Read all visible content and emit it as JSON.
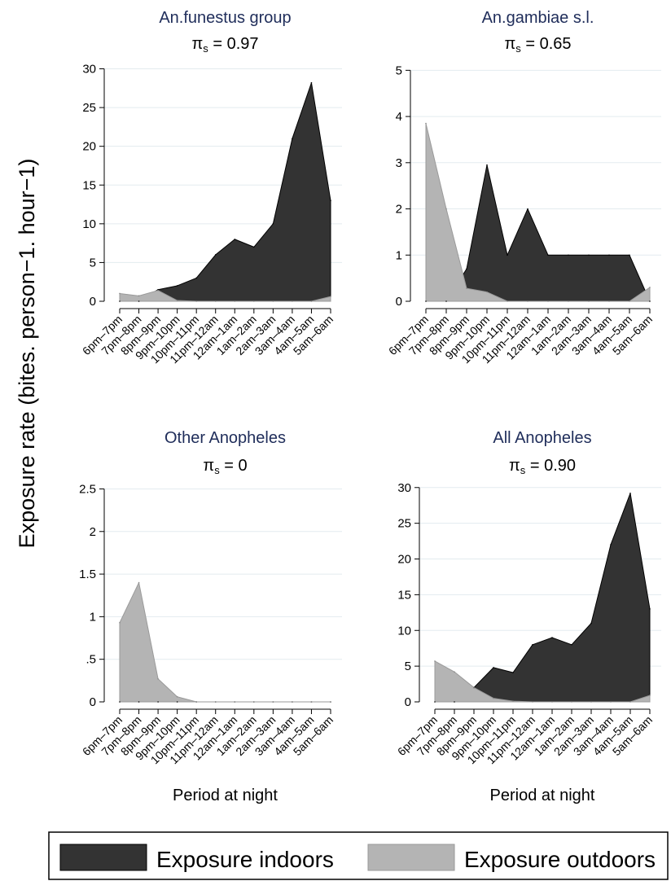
{
  "ylabel": "Exposure rate (bites. person−1. hour−1)",
  "legend": {
    "indoor_label": "Exposure indoors",
    "outdoor_label": "Exposure outdoors",
    "indoor_color": "#333333",
    "outdoor_color": "#b4b4b4"
  },
  "chart_data": [
    {
      "type": "area",
      "title": "An.funestus group",
      "pi_symbol": "π",
      "pi_sub": "s",
      "pi_value": "= 0.97",
      "xlabel": "",
      "categories": [
        "6pm–7pm",
        "7pm–8pm",
        "8pm–9pm",
        "9pm–10pm",
        "10pm–11pm",
        "11pm–12am",
        "12am–1am",
        "1am–2am",
        "2am–3am",
        "3am–4am",
        "4am–5am",
        "5am–6am"
      ],
      "yticks": [
        0,
        5,
        10,
        15,
        20,
        25,
        30
      ],
      "ytick_labels": [
        "0",
        "5",
        "10",
        "15",
        "20",
        "25",
        "30"
      ],
      "ylim": [
        0,
        31
      ],
      "series": [
        {
          "name": "Exposure indoors",
          "values": [
            0,
            0,
            1.5,
            2,
            3,
            6,
            8,
            7,
            10,
            21,
            28.2,
            13
          ]
        },
        {
          "name": "Exposure outdoors",
          "values": [
            1.0,
            0.7,
            1.4,
            0.1,
            0,
            0,
            0,
            0,
            0,
            0,
            0,
            0.6
          ]
        }
      ]
    },
    {
      "type": "area",
      "title": "An.gambiae s.l.",
      "pi_symbol": "π",
      "pi_sub": "s",
      "pi_value": "= 0.65",
      "xlabel": "",
      "categories": [
        "6pm–7pm",
        "7pm–8pm",
        "8pm–9pm",
        "9pm–10pm",
        "10pm–11pm",
        "11pm–12am",
        "12am–1am",
        "1am–2am",
        "2am–3am",
        "3am–4am",
        "4am–5am",
        "5am–6am"
      ],
      "yticks": [
        0,
        1,
        2,
        3,
        4,
        5
      ],
      "ytick_labels": [
        "0",
        "1",
        "2",
        "3",
        "4",
        "5"
      ],
      "ylim": [
        0,
        5.2
      ],
      "series": [
        {
          "name": "Exposure indoors",
          "values": [
            0,
            0,
            0.7,
            2.95,
            1.0,
            2.0,
            1.0,
            1.0,
            1.0,
            1.0,
            1.0,
            0
          ]
        },
        {
          "name": "Exposure outdoors",
          "values": [
            3.85,
            2.0,
            0.28,
            0.2,
            0,
            0,
            0,
            0,
            0,
            0,
            0,
            0.3
          ]
        }
      ]
    },
    {
      "type": "area",
      "title": "Other Anopheles",
      "pi_symbol": "π",
      "pi_sub": "s",
      "pi_value": "= 0",
      "xlabel": "Period at night",
      "categories": [
        "6pm–7pm",
        "7pm–8pm",
        "8pm–9pm",
        "9pm–10pm",
        "10pm–11pm",
        "11pm–12am",
        "12am–1am",
        "1am–2am",
        "2am–3am",
        "3am–4am",
        "4am–5am",
        "5am–6am"
      ],
      "yticks": [
        0,
        0.5,
        1,
        1.5,
        2,
        2.5
      ],
      "ytick_labels": [
        "0",
        ".5",
        "1",
        "1.5",
        "2",
        "2.5"
      ],
      "ylim": [
        0,
        2.6
      ],
      "series": [
        {
          "name": "Exposure indoors",
          "values": [
            0,
            0,
            0,
            0,
            0,
            0,
            0,
            0,
            0,
            0,
            0,
            0
          ]
        },
        {
          "name": "Exposure outdoors",
          "values": [
            0.93,
            1.4,
            0.27,
            0.06,
            0,
            0,
            0,
            0,
            0,
            0,
            0,
            0
          ]
        }
      ]
    },
    {
      "type": "area",
      "title": "All Anopheles",
      "pi_symbol": "π",
      "pi_sub": "s",
      "pi_value": "= 0.90",
      "xlabel": "Period at night",
      "categories": [
        "6pm–7pm",
        "7pm–8pm",
        "8pm–9pm",
        "9pm–10pm",
        "10pm–11pm",
        "11pm–12am",
        "12am–1am",
        "1am–2am",
        "2am–3am",
        "3am–4am",
        "4am–5am",
        "5am–6am"
      ],
      "yticks": [
        0,
        5,
        10,
        15,
        20,
        25,
        30
      ],
      "ytick_labels": [
        "0",
        "5",
        "10",
        "15",
        "20",
        "25",
        "30"
      ],
      "ylim": [
        0,
        31
      ],
      "series": [
        {
          "name": "Exposure indoors",
          "values": [
            0,
            0,
            2.0,
            4.8,
            4.1,
            8,
            9,
            8,
            11,
            22,
            29.2,
            13
          ]
        },
        {
          "name": "Exposure outdoors",
          "values": [
            5.7,
            4.2,
            2.0,
            0.5,
            0.1,
            0,
            0,
            0,
            0,
            0,
            0,
            0.9
          ]
        }
      ]
    }
  ]
}
